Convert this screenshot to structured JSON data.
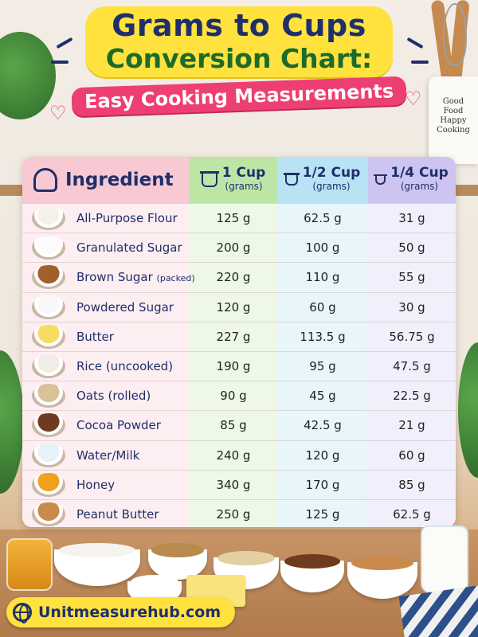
{
  "title": {
    "line1": "Grams to Cups",
    "line2": "Conversion Chart:",
    "subtitle": "Easy Cooking Measurements"
  },
  "jar_text": [
    "Good",
    "Food",
    "Happy",
    "Cooking"
  ],
  "table": {
    "headers": {
      "ingredient": "Ingredient",
      "col1_main": "1 Cup",
      "col1_sub": "(grams)",
      "col2_main": "1/2 Cup",
      "col2_sub": "(grams)",
      "col3_main": "1/4 Cup",
      "col3_sub": "(grams)"
    },
    "rows": [
      {
        "name": "All-Purpose Flour",
        "note": "",
        "cup1": "125 g",
        "cup_half": "62.5 g",
        "cup_quarter": "31 g",
        "color": "#f4f1ea"
      },
      {
        "name": "Granulated Sugar",
        "note": "",
        "cup1": "200 g",
        "cup_half": "100 g",
        "cup_quarter": "50 g",
        "color": "#fbfbfb"
      },
      {
        "name": "Brown Sugar",
        "note": "(packed)",
        "cup1": "220 g",
        "cup_half": "110 g",
        "cup_quarter": "55 g",
        "color": "#a0602c"
      },
      {
        "name": "Powdered Sugar",
        "note": "",
        "cup1": "120 g",
        "cup_half": "60 g",
        "cup_quarter": "30 g",
        "color": "#f8f8f8"
      },
      {
        "name": "Butter",
        "note": "",
        "cup1": "227 g",
        "cup_half": "113.5 g",
        "cup_quarter": "56.75 g",
        "color": "#f7dc62"
      },
      {
        "name": "Rice (uncooked)",
        "note": "",
        "cup1": "190 g",
        "cup_half": "95 g",
        "cup_quarter": "47.5 g",
        "color": "#f0ede6"
      },
      {
        "name": "Oats (rolled)",
        "note": "",
        "cup1": "90 g",
        "cup_half": "45 g",
        "cup_quarter": "22.5 g",
        "color": "#d8c29a"
      },
      {
        "name": "Cocoa Powder",
        "note": "",
        "cup1": "85 g",
        "cup_half": "42.5 g",
        "cup_quarter": "21 g",
        "color": "#6e3b1e"
      },
      {
        "name": "Water/Milk",
        "note": "",
        "cup1": "240 g",
        "cup_half": "120 g",
        "cup_quarter": "60 g",
        "color": "#e7f1f8"
      },
      {
        "name": "Honey",
        "note": "",
        "cup1": "340 g",
        "cup_half": "170 g",
        "cup_quarter": "85 g",
        "color": "#f0a21e"
      },
      {
        "name": "Peanut Butter",
        "note": "",
        "cup1": "250 g",
        "cup_half": "125 g",
        "cup_quarter": "62.5 g",
        "color": "#c98a4b"
      }
    ]
  },
  "footer": {
    "site": "Unitmeasurehub.com"
  },
  "icons": {
    "header": "chef-hat-icon",
    "cup": "measuring-cup-icon",
    "footer": "globe-icon"
  },
  "colors": {
    "title_bg": "#ffe23d",
    "title_text": "#1f2f6b",
    "title_line2": "#1b6b2a",
    "subtitle_bg": "#ee3f72"
  }
}
